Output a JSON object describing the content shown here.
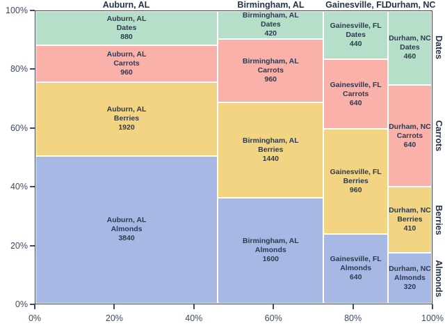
{
  "chart_data": {
    "type": "mosaic",
    "title": "",
    "xlabel": "",
    "ylabel": "",
    "columns": [
      "Auburn, AL",
      "Birmingham, AL",
      "Gainesville, FL",
      "Durham, NC"
    ],
    "rows_top_to_bottom": [
      "Dates",
      "Carrots",
      "Berries",
      "Almonds"
    ],
    "values": {
      "Auburn, AL": {
        "Dates": 880,
        "Carrots": 960,
        "Berries": 1920,
        "Almonds": 3840
      },
      "Birmingham, AL": {
        "Dates": 420,
        "Carrots": 960,
        "Berries": 1440,
        "Almonds": 1600
      },
      "Gainesville, FL": {
        "Dates": 440,
        "Carrots": 640,
        "Berries": 960,
        "Almonds": 640
      },
      "Durham, NC": {
        "Dates": 460,
        "Carrots": 640,
        "Berries": 410,
        "Almonds": 320
      }
    },
    "right_row_labels": [
      "Dates",
      "Carrots",
      "Berries",
      "Almonds"
    ],
    "x_axis": {
      "range": [
        0,
        100
      ],
      "tick_labels": [
        "0%",
        "20%",
        "40%",
        "60%",
        "80%",
        "100%"
      ]
    },
    "y_axis": {
      "range": [
        0,
        100
      ],
      "tick_labels": [
        "0%",
        "20%",
        "40%",
        "60%",
        "80%",
        "100%"
      ]
    },
    "legend": "none",
    "grid": false,
    "colors": {
      "Dates": "#b6dfc9",
      "Carrots": "#f9b1a9",
      "Berries": "#f3d483",
      "Almonds": "#a7b8e4",
      "axis": "#2f3b51",
      "cell_text": "#2e3a50",
      "tick_text": "#3e4a61",
      "cell_gap": "#ffffff"
    }
  }
}
